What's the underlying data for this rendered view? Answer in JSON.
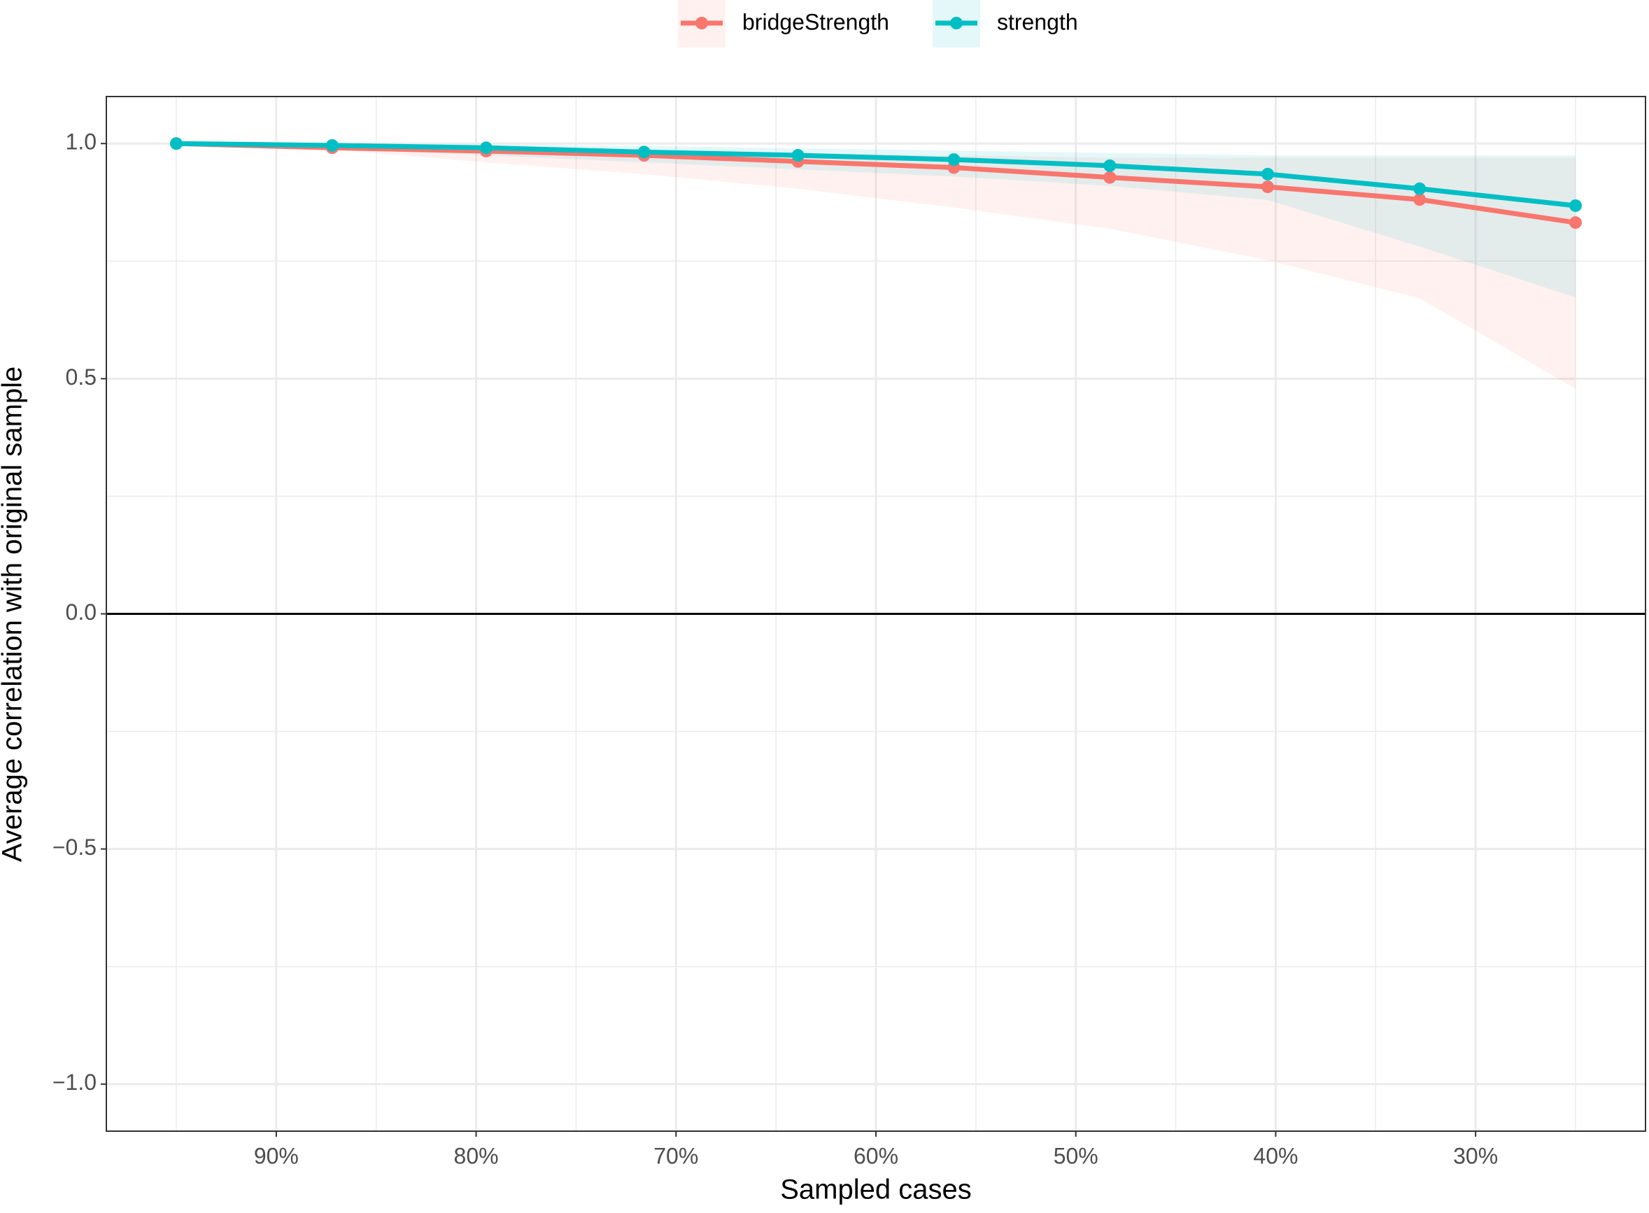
{
  "chart_data": {
    "type": "line",
    "xlabel": "Sampled cases",
    "ylabel": "Average correlation with original sample",
    "x": [
      95,
      87.2,
      79.5,
      71.6,
      63.9,
      56.1,
      48.3,
      40.4,
      32.8,
      25
    ],
    "series": [
      {
        "name": "bridgeStrength",
        "color": "#F8766D",
        "values": [
          1.0,
          0.991,
          0.984,
          0.975,
          0.962,
          0.949,
          0.928,
          0.908,
          0.881,
          0.832
        ],
        "lower": [
          1.0,
          0.987,
          0.96,
          0.935,
          0.904,
          0.864,
          0.819,
          0.752,
          0.671,
          0.479
        ],
        "upper": [
          1.0,
          0.995,
          0.99,
          0.985,
          0.98,
          0.975,
          0.97,
          0.97,
          0.97,
          0.97
        ]
      },
      {
        "name": "strength",
        "color": "#00BFC4",
        "values": [
          1.0,
          0.996,
          0.991,
          0.982,
          0.975,
          0.966,
          0.953,
          0.935,
          0.904,
          0.868
        ],
        "lower": [
          1.0,
          0.99,
          0.975,
          0.96,
          0.945,
          0.93,
          0.91,
          0.88,
          0.781,
          0.673
        ],
        "upper": [
          1.0,
          1.0,
          0.998,
          0.995,
          0.99,
          0.985,
          0.98,
          0.975,
          0.975,
          0.975
        ]
      }
    ],
    "xlim": [
      98.5,
      21.5
    ],
    "ylim": [
      -1.1,
      1.1
    ],
    "xticks": [
      {
        "value": 90,
        "label": "90%"
      },
      {
        "value": 80,
        "label": "80%"
      },
      {
        "value": 70,
        "label": "70%"
      },
      {
        "value": 60,
        "label": "60%"
      },
      {
        "value": 50,
        "label": "50%"
      },
      {
        "value": 40,
        "label": "40%"
      },
      {
        "value": 30,
        "label": "30%"
      }
    ],
    "yticks": [
      {
        "value": -1,
        "label": "−1.0"
      },
      {
        "value": -0.5,
        "label": "−0.5"
      },
      {
        "value": 0,
        "label": "0.0"
      },
      {
        "value": 0.5,
        "label": "0.5"
      },
      {
        "value": 1,
        "label": "1.0"
      }
    ],
    "xminor": [
      95,
      85,
      75,
      65,
      55,
      45,
      35,
      25
    ],
    "yminor": [
      -0.75,
      -0.25,
      0.25,
      0.75
    ],
    "hline": 0,
    "grid": true,
    "legend": "top"
  }
}
